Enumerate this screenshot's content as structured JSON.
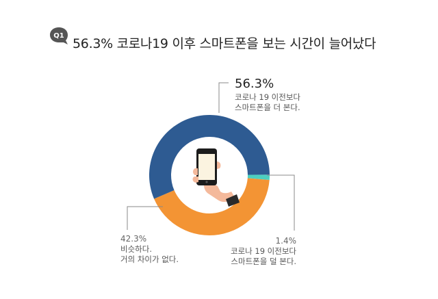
{
  "badge": {
    "text": "Q1",
    "color": "#555555"
  },
  "title": "56.3% 코로나19 이후 스마트폰을 보는 시간이 늘어났다",
  "chart_data": {
    "type": "pie",
    "donut": true,
    "categories": [
      "코로나 19 이전보다 스마트폰을 더 본다.",
      "비슷하다. 거의 차이가 없다.",
      "코로나 19 이전보다 스마트폰을 덜 본다."
    ],
    "values": [
      56.3,
      42.3,
      1.4
    ],
    "colors": [
      "#2e5b92",
      "#f39434",
      "#4dcfc0"
    ],
    "labels": [
      {
        "pct": "56.3%",
        "line1": "코로나 19 이전보다",
        "line2": "스마트폰을 더 본다."
      },
      {
        "pct": "42.3%",
        "line1": "비슷하다.",
        "line2": "거의 차이가 없다."
      },
      {
        "pct": "1.4%",
        "line1": "코로나 19 이전보다",
        "line2": "스마트폰을 덜 본다."
      }
    ]
  }
}
